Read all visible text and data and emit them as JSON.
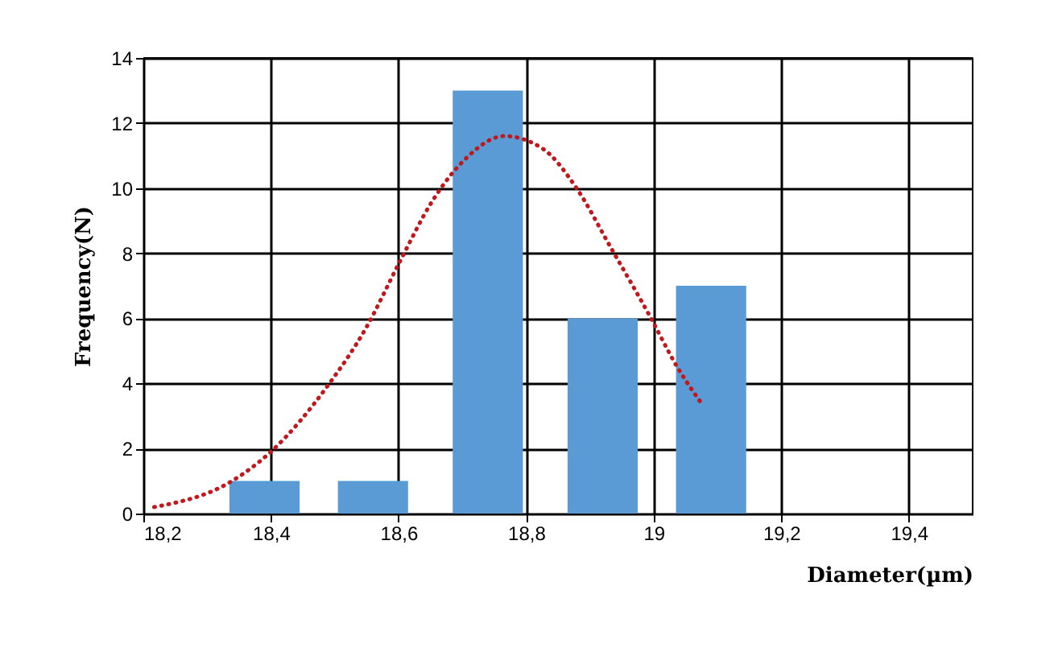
{
  "chart_data": {
    "type": "bar",
    "xlabel": "Diameter(µm)",
    "ylabel": "Frequency(N)",
    "x": [
      18.39,
      18.56,
      18.74,
      18.92,
      19.09
    ],
    "series": [
      {
        "color": "#5b9bd5",
        "values": [
          1,
          1,
          13,
          6,
          7
        ]
      },
      {
        "type": "line",
        "color": "#c0181c",
        "line_style": "dotted",
        "x": [
          18.217,
          18.339,
          18.4,
          18.488,
          18.549,
          18.601,
          18.653,
          18.705,
          18.766,
          18.827,
          18.879,
          18.932,
          18.993,
          19.037,
          19.078
        ],
        "values": [
          0.2,
          1.0,
          1.9,
          3.9,
          5.7,
          7.7,
          9.6,
          10.9,
          11.6,
          11.2,
          10.0,
          8.2,
          6.1,
          4.5,
          3.3
        ]
      }
    ],
    "xlim": [
      18.2,
      19.5
    ],
    "xticks": [
      {
        "value": 18.2,
        "label": "18,2"
      },
      {
        "value": 18.4,
        "label": "18,4"
      },
      {
        "value": 18.6,
        "label": "18,6"
      },
      {
        "value": 18.8,
        "label": "18,8"
      },
      19,
      {
        "value": 19.2,
        "label": "19,2"
      },
      {
        "value": 19.4,
        "label": "19,4"
      }
    ],
    "ylim": [
      0,
      14
    ],
    "yticks": [
      0,
      2,
      4,
      6,
      8,
      10,
      12,
      14
    ],
    "grid": true
  }
}
